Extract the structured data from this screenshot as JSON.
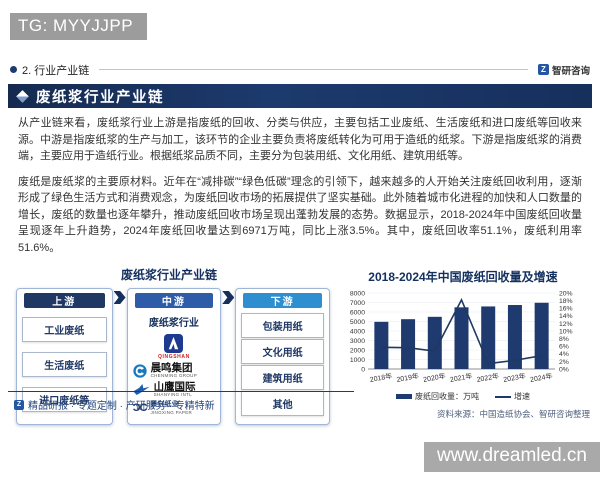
{
  "page": {
    "tg_label": "TG: MYYJJPP",
    "watermark": "www.dreamled.cn"
  },
  "header": {
    "section_title": "2. 行业产业链",
    "logo_text": "智研咨询",
    "logo_glyph": "Z",
    "banner_title": "废纸浆行业产业链"
  },
  "paragraphs": {
    "p1": "从产业链来看，废纸浆行业上游是指废纸的回收、分类与供应，主要包括工业废纸、生活废纸和进口废纸等回收来源。中游是指废纸浆的生产与加工，该环节的企业主要负责将废纸转化为可用于造纸的纸浆。下游是指废纸浆的消费端，主要应用于造纸行业。根据纸浆品质不同，主要分为包装用纸、文化用纸、建筑用纸等。",
    "p2": "废纸是废纸浆的主要原材料。近年在“减排碳”“绿色低碳”理念的引领下，越来越多的人开始关注废纸回收利用，逐渐形成了绿色生活方式和消费观念，为废纸回收市场的拓展提供了坚实基础。此外随着城市化进程的加快和人口数量的增长，废纸的数量也逐年攀升，推动废纸回收市场呈现出蓬勃发展的态势。数据显示，2018-2024年中国废纸回收量呈现逐年上升趋势，2024年废纸回收量达到6971万吨，同比上涨3.5%。其中，废纸回收率51.1%，废纸利用率51.6%。"
  },
  "diagram": {
    "title": "废纸浆行业产业链",
    "columns": [
      {
        "header": "上游",
        "items": [
          "工业废纸",
          "生活废纸",
          "进口废纸等"
        ]
      },
      {
        "header": "中游",
        "subtitle": "废纸浆行业",
        "companies": [
          {
            "en": "QINGSHAN"
          },
          {
            "cn": "晨鸣集团",
            "en": "CHENMING GROUP"
          },
          {
            "cn": "山鹰国际",
            "en": "SHANYING INTL"
          },
          {
            "mark": "ƆC",
            "cn": "景兴纸业",
            "en": "JINGXING PAPER"
          }
        ]
      },
      {
        "header": "下游",
        "items": [
          "包装用纸",
          "文化用纸",
          "建筑用纸",
          "其他"
        ]
      }
    ]
  },
  "chart_data": {
    "type": "bar",
    "title": "2018-2024年中国废纸回收量及增速",
    "categories": [
      "2018年",
      "2019年",
      "2020年",
      "2021年",
      "2022年",
      "2023年",
      "2024年"
    ],
    "series": [
      {
        "name": "废纸回收量：万吨",
        "type": "bar",
        "axis": "left",
        "color": "#1e3a6e",
        "values": [
          4964,
          5244,
          5493,
          6491,
          6585,
          6735,
          6971
        ]
      },
      {
        "name": "增速",
        "type": "line",
        "axis": "right",
        "color": "#1f3864",
        "values": [
          5.7,
          5.6,
          4.7,
          18.2,
          1.4,
          2.3,
          3.5
        ]
      }
    ],
    "left_axis": {
      "min": 0,
      "max": 8000,
      "step": 1000
    },
    "right_axis": {
      "min": 0,
      "max": 20,
      "step": 2,
      "suffix": "%"
    },
    "grid": true,
    "legend_position": "bottom",
    "source_note": "资料来源：中国造纸协会、智研咨询整理"
  },
  "footer": {
    "text": "精品研报 · 专题定制 · 产研服务 · 专精特新",
    "logo_glyph": "Z"
  }
}
